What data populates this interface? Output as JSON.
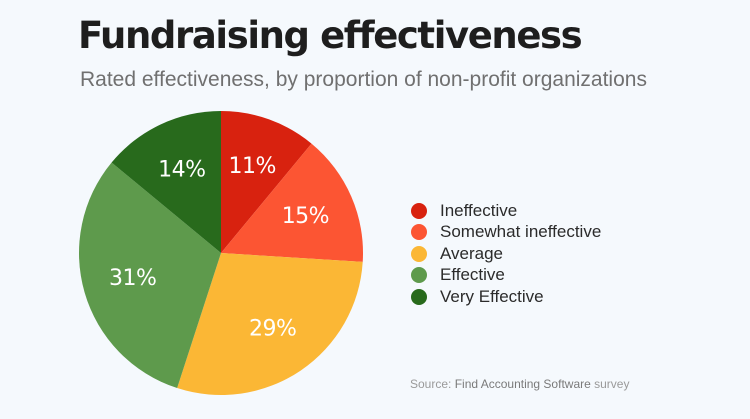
{
  "chart_data": {
    "type": "pie",
    "title": "Fundraising effectiveness",
    "subtitle": "Rated effectiveness, by proportion of non-profit organizations",
    "categories": [
      "Ineffective",
      "Somewhat ineffective",
      "Average",
      "Effective",
      "Very Effective"
    ],
    "values": [
      11,
      15,
      29,
      31,
      14
    ],
    "labels": [
      "11%",
      "15%",
      "29%",
      "31%",
      "14%"
    ],
    "colors": [
      "#d8220f",
      "#fc5533",
      "#fbb735",
      "#5e9a4c",
      "#286a1c"
    ],
    "legend_position": "right"
  },
  "source": {
    "prefix": "Source:",
    "name": "Find Accounting Software",
    "suffix": "survey"
  }
}
